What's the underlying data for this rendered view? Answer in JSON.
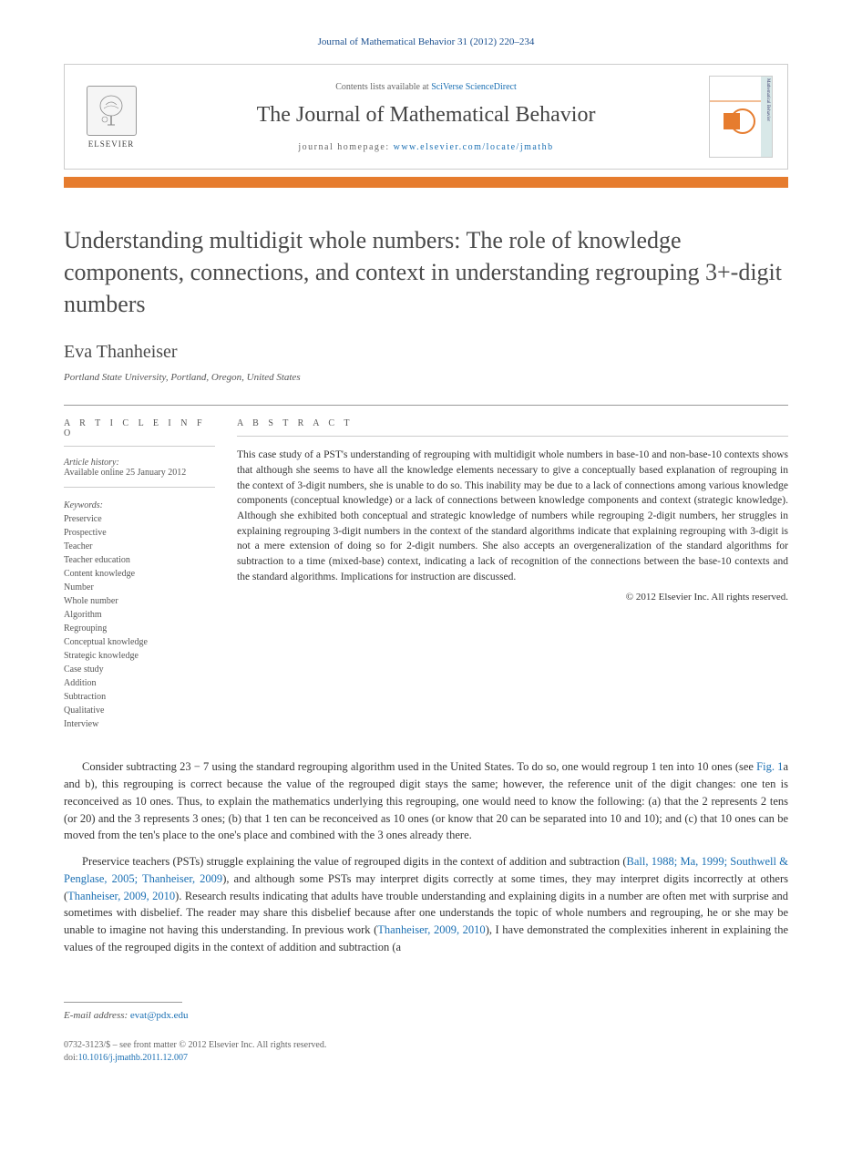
{
  "running_head": "Journal of Mathematical Behavior 31 (2012) 220–234",
  "header": {
    "publisher_name": "ELSEVIER",
    "contents_prefix": "Contents lists available at ",
    "contents_link": "SciVerse ScienceDirect",
    "journal_title": "The Journal of Mathematical Behavior",
    "homepage_prefix": "journal homepage: ",
    "homepage_url": "www.elsevier.com/locate/jmathb",
    "cover_side_text": "Mathematical Behavior"
  },
  "article": {
    "title": "Understanding multidigit whole numbers: The role of knowledge components, connections, and context in understanding regrouping 3+-digit numbers",
    "author": "Eva Thanheiser",
    "affiliation": "Portland State University, Portland, Oregon, United States"
  },
  "info": {
    "section_label": "A R T I C L E   I N F O",
    "history_label": "Article history:",
    "history_text": "Available online 25 January 2012",
    "keywords_label": "Keywords:",
    "keywords": [
      "Preservice",
      "Prospective",
      "Teacher",
      "Teacher education",
      "Content knowledge",
      "Number",
      "Whole number",
      "Algorithm",
      "Regrouping",
      "Conceptual knowledge",
      "Strategic knowledge",
      "Case study",
      "Addition",
      "Subtraction",
      "Qualitative",
      "Interview"
    ]
  },
  "abstract": {
    "section_label": "A B S T R A C T",
    "text": "This case study of a PST's understanding of regrouping with multidigit whole numbers in base-10 and non-base-10 contexts shows that although she seems to have all the knowledge elements necessary to give a conceptually based explanation of regrouping in the context of 3-digit numbers, she is unable to do so. This inability may be due to a lack of connections among various knowledge components (conceptual knowledge) or a lack of connections between knowledge components and context (strategic knowledge). Although she exhibited both conceptual and strategic knowledge of numbers while regrouping 2-digit numbers, her struggles in explaining regrouping 3-digit numbers in the context of the standard algorithms indicate that explaining regrouping with 3-digit is not a mere extension of doing so for 2-digit numbers. She also accepts an overgeneralization of the standard algorithms for subtraction to a time (mixed-base) context, indicating a lack of recognition of the connections between the base-10 contexts and the standard algorithms. Implications for instruction are discussed.",
    "copyright": "© 2012 Elsevier Inc. All rights reserved."
  },
  "body": {
    "p1_a": "Consider subtracting 23 − 7 using the standard regrouping algorithm used in the United States. To do so, one would regroup 1 ten into 10 ones (see ",
    "p1_link": "Fig. 1",
    "p1_b": "a and b), this regrouping is correct because the value of the regrouped digit stays the same; however, the reference unit of the digit changes: one ten is reconceived as 10 ones. Thus, to explain the mathematics underlying this regrouping, one would need to know the following: (a) that the 2 represents 2 tens (or 20) and the 3 represents 3 ones; (b) that 1 ten can be reconceived as 10 ones (or know that 20 can be separated into 10 and 10); and (c) that 10 ones can be moved from the ten's place to the one's place and combined with the 3 ones already there.",
    "p2_a": "Preservice teachers (PSTs) struggle explaining the value of regrouped digits in the context of addition and subtraction (",
    "p2_link1": "Ball, 1988; Ma, 1999; Southwell & Penglase, 2005; Thanheiser, 2009",
    "p2_b": "), and although some PSTs may interpret digits correctly at some times, they may interpret digits incorrectly at others (",
    "p2_link2": "Thanheiser, 2009, 2010",
    "p2_c": "). Research results indicating that adults have trouble understanding and explaining digits in a number are often met with surprise and sometimes with disbelief. The reader may share this disbelief because after one understands the topic of whole numbers and regrouping, he or she may be unable to imagine not having this understanding. In previous work (",
    "p2_link3": "Thanheiser, 2009, 2010",
    "p2_d": "), I have demonstrated the complexities inherent in explaining the values of the regrouped digits in the context of addition and subtraction (a"
  },
  "footer": {
    "email_label": "E-mail address: ",
    "email": "evat@pdx.edu",
    "issn_line": "0732-3123/$ – see front matter © 2012 Elsevier Inc. All rights reserved.",
    "doi_label": "doi:",
    "doi": "10.1016/j.jmathb.2011.12.007"
  },
  "colors": {
    "accent_orange": "#e67c2e",
    "link_blue": "#1a6fb3",
    "text_dark": "#333333",
    "text_medium": "#555555",
    "border_gray": "#cccccc"
  }
}
